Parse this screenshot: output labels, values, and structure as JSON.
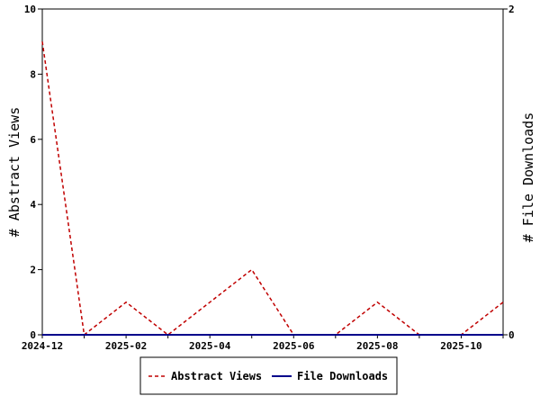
{
  "chart_data": {
    "type": "line",
    "x": [
      "2024-12",
      "2025-01",
      "2025-02",
      "2025-03",
      "2025-04",
      "2025-05",
      "2025-06",
      "2025-07",
      "2025-08",
      "2025-09",
      "2025-10",
      "2025-11"
    ],
    "x_tick_labels": [
      "2024-12",
      "2025-02",
      "2025-04",
      "2025-06",
      "2025-08",
      "2025-10"
    ],
    "series": [
      {
        "name": "Abstract Views",
        "axis": "left",
        "color": "#c00000",
        "dash": "dashed",
        "values": [
          9,
          0,
          1,
          0,
          1,
          2,
          0,
          0,
          1,
          0,
          0,
          1
        ]
      },
      {
        "name": "File Downloads",
        "axis": "right",
        "color": "#00008b",
        "dash": "solid",
        "values": [
          0,
          0,
          0,
          0,
          0,
          0,
          0,
          0,
          0,
          0,
          0,
          0
        ]
      }
    ],
    "ylabel_left": "# Abstract Views",
    "ylabel_right": "# File Downloads",
    "ylim_left": [
      0,
      10
    ],
    "y_ticks_left": [
      0,
      2,
      4,
      6,
      8,
      10
    ],
    "ylim_right": [
      0,
      2
    ],
    "y_ticks_right": [
      0,
      2
    ],
    "grid": false,
    "legend_position": "bottom-center"
  }
}
